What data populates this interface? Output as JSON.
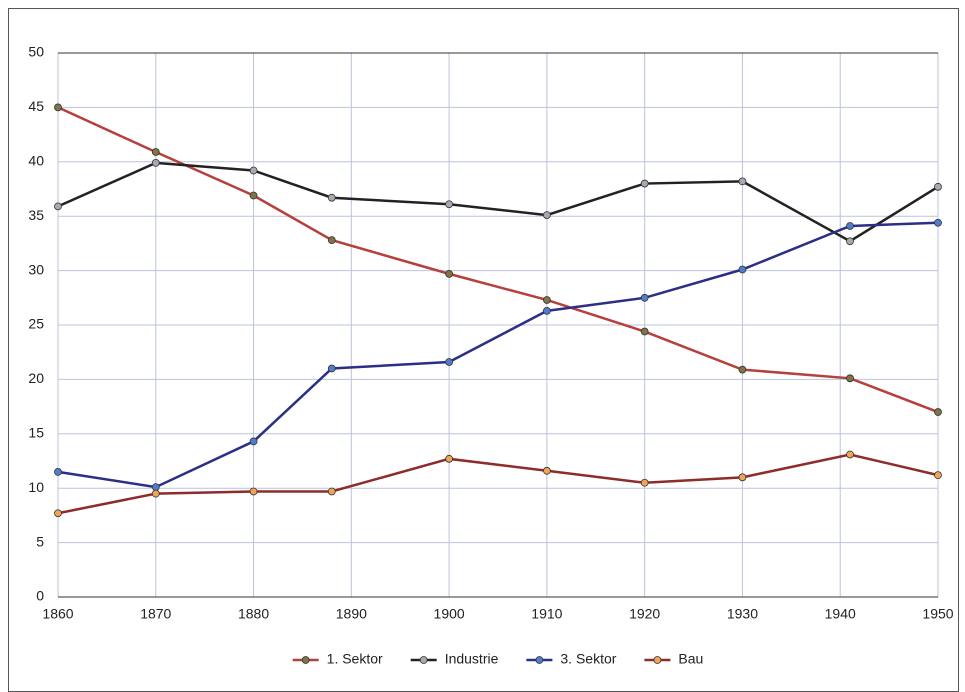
{
  "chart_data": {
    "type": "line",
    "x": [
      1860,
      1870,
      1880,
      1888,
      1900,
      1910,
      1920,
      1930,
      1941,
      1950
    ],
    "xlim": [
      1860,
      1950
    ],
    "xticks": [
      1860,
      1870,
      1880,
      1890,
      1900,
      1910,
      1920,
      1930,
      1940,
      1950
    ],
    "ylim": [
      0,
      50
    ],
    "yticks": [
      0,
      5,
      10,
      15,
      20,
      25,
      30,
      35,
      40,
      45,
      50
    ],
    "grid": true,
    "legend": "bottom",
    "series": [
      {
        "name": "1. Sektor",
        "color": "#b5403c",
        "marker_color": "#7d7448",
        "values": [
          45,
          40.9,
          36.9,
          32.8,
          29.7,
          27.3,
          24.4,
          20.9,
          20.1,
          17.0
        ]
      },
      {
        "name": "Industrie",
        "color": "#222222",
        "marker_color": "#a8a8b0",
        "values": [
          35.9,
          39.9,
          39.2,
          36.7,
          36.1,
          35.1,
          38.0,
          38.2,
          32.7,
          37.7
        ]
      },
      {
        "name": "3. Sektor",
        "color": "#2b2f86",
        "marker_color": "#4f7dcc",
        "values": [
          11.5,
          10.1,
          14.3,
          21.0,
          21.6,
          26.3,
          27.5,
          30.1,
          34.1,
          34.4
        ]
      },
      {
        "name": "Bau",
        "color": "#8e2b2b",
        "marker_color": "#f0a456",
        "values": [
          7.7,
          9.5,
          9.7,
          9.7,
          12.7,
          11.6,
          10.5,
          11.0,
          13.1,
          11.2
        ]
      }
    ]
  }
}
